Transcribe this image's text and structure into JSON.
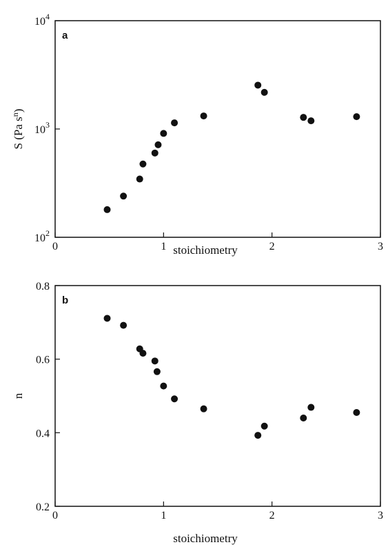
{
  "chart_data": [
    {
      "type": "scatter",
      "panel_label": "a",
      "xlabel": "stoichiometry",
      "ylabel": "S (Pa s",
      "ylabel_sup": "n",
      "ylabel_close": ")",
      "xlim": [
        0,
        3
      ],
      "ylim": [
        100,
        10000
      ],
      "yscale": "log",
      "xticks": [
        0,
        1,
        2,
        3
      ],
      "yticks": [
        {
          "base": "10",
          "exp": "2",
          "value": 100
        },
        {
          "base": "10",
          "exp": "3",
          "value": 1000
        },
        {
          "base": "10",
          "exp": "4",
          "value": 10000
        }
      ],
      "grid": false,
      "points": [
        {
          "x": 0.48,
          "y": 180
        },
        {
          "x": 0.63,
          "y": 240
        },
        {
          "x": 0.78,
          "y": 345
        },
        {
          "x": 0.81,
          "y": 475
        },
        {
          "x": 0.92,
          "y": 600
        },
        {
          "x": 0.95,
          "y": 715
        },
        {
          "x": 1.0,
          "y": 910
        },
        {
          "x": 1.1,
          "y": 1140
        },
        {
          "x": 1.37,
          "y": 1320
        },
        {
          "x": 1.87,
          "y": 2540
        },
        {
          "x": 1.93,
          "y": 2180
        },
        {
          "x": 2.29,
          "y": 1280
        },
        {
          "x": 2.36,
          "y": 1190
        },
        {
          "x": 2.78,
          "y": 1300
        }
      ]
    },
    {
      "type": "scatter",
      "panel_label": "b",
      "xlabel": "stoichiometry",
      "ylabel": "n",
      "xlim": [
        0,
        3
      ],
      "ylim": [
        0.2,
        0.8
      ],
      "yscale": "linear",
      "xticks": [
        0,
        1,
        2,
        3
      ],
      "yticks": [
        {
          "label": "0.2",
          "value": 0.2
        },
        {
          "label": "0.4",
          "value": 0.4
        },
        {
          "label": "0.6",
          "value": 0.6
        },
        {
          "label": "0.8",
          "value": 0.8
        }
      ],
      "grid": false,
      "points": [
        {
          "x": 0.48,
          "y": 0.711
        },
        {
          "x": 0.63,
          "y": 0.692
        },
        {
          "x": 0.78,
          "y": 0.628
        },
        {
          "x": 0.81,
          "y": 0.616
        },
        {
          "x": 0.92,
          "y": 0.595
        },
        {
          "x": 0.94,
          "y": 0.566
        },
        {
          "x": 1.0,
          "y": 0.527
        },
        {
          "x": 1.1,
          "y": 0.492
        },
        {
          "x": 1.37,
          "y": 0.465
        },
        {
          "x": 1.87,
          "y": 0.393
        },
        {
          "x": 1.93,
          "y": 0.418
        },
        {
          "x": 2.29,
          "y": 0.44
        },
        {
          "x": 2.36,
          "y": 0.469
        },
        {
          "x": 2.78,
          "y": 0.455
        }
      ]
    }
  ]
}
